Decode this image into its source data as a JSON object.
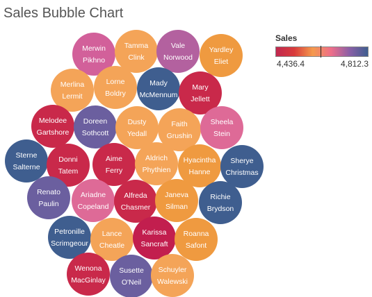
{
  "title": "Sales Bubble Chart",
  "legend": {
    "title": "Sales",
    "min_label": "4,436.4",
    "max_label": "4,812.3",
    "min": 4436.4,
    "max": 4812.3,
    "marker_value": 4620,
    "gradient": [
      "#c0284f",
      "#d93c3c",
      "#f49a4d",
      "#ee6e8a",
      "#8a5fa6",
      "#3f5e8f"
    ]
  },
  "chart_data": {
    "type": "bubble",
    "title": "Sales Bubble Chart",
    "color_measure": "Sales",
    "color_range": [
      4436.4,
      4812.3
    ],
    "points": [
      {
        "first": "Merwin",
        "last": "Pikhno",
        "color": "#d2609a",
        "value": 4660
      },
      {
        "first": "Tamma",
        "last": "Clink",
        "color": "#f4a458",
        "value": 4590
      },
      {
        "first": "Vale",
        "last": "Norwood",
        "color": "#b3619f",
        "value": 4690
      },
      {
        "first": "Yardley",
        "last": "Eliet",
        "color": "#ef9a40",
        "value": 4570
      },
      {
        "first": "Merlina",
        "last": "Lermit",
        "color": "#f4a458",
        "value": 4590
      },
      {
        "first": "Lorne",
        "last": "Boldry",
        "color": "#f4a458",
        "value": 4590
      },
      {
        "first": "Mady",
        "last": "McMennum",
        "color": "#3f5e8f",
        "value": 4800
      },
      {
        "first": "Mary",
        "last": "Jellett",
        "color": "#c9294a",
        "value": 4450
      },
      {
        "first": "Melodee",
        "last": "Gartshore",
        "color": "#c9294a",
        "value": 4460
      },
      {
        "first": "Doreen",
        "last": "Sothcott",
        "color": "#6b5f9f",
        "value": 4740
      },
      {
        "first": "Dusty",
        "last": "Yedall",
        "color": "#f4a458",
        "value": 4590
      },
      {
        "first": "Faith",
        "last": "Grushin",
        "color": "#f4a458",
        "value": 4590
      },
      {
        "first": "Sheela",
        "last": "Stein",
        "color": "#de6a97",
        "value": 4650
      },
      {
        "first": "Sterne",
        "last": "Salterne",
        "color": "#3f5e8f",
        "value": 4810
      },
      {
        "first": "Donni",
        "last": "Tatem",
        "color": "#c9294a",
        "value": 4450
      },
      {
        "first": "Aime",
        "last": "Ferry",
        "color": "#c9294a",
        "value": 4455
      },
      {
        "first": "Aldrich",
        "last": "Phythien",
        "color": "#f4a458",
        "value": 4590
      },
      {
        "first": "Hyacintha",
        "last": "Hanne",
        "color": "#ef9a40",
        "value": 4570
      },
      {
        "first": "Sherye",
        "last": "Christmas",
        "color": "#3f5e8f",
        "value": 4805
      },
      {
        "first": "Renato",
        "last": "Paulin",
        "color": "#6b5f9f",
        "value": 4740
      },
      {
        "first": "Ariadne",
        "last": "Copeland",
        "color": "#de6a97",
        "value": 4650
      },
      {
        "first": "Alfreda",
        "last": "Chasmer",
        "color": "#c9294a",
        "value": 4455
      },
      {
        "first": "Janeva",
        "last": "Silman",
        "color": "#ef9a40",
        "value": 4570
      },
      {
        "first": "Richie",
        "last": "Brydson",
        "color": "#3f5e8f",
        "value": 4800
      },
      {
        "first": "Petronille",
        "last": "Scrimgeour",
        "color": "#3f5e8f",
        "value": 4795
      },
      {
        "first": "Lance",
        "last": "Cheatle",
        "color": "#f4a458",
        "value": 4590
      },
      {
        "first": "Karissa",
        "last": "Sancraft",
        "color": "#c21e4e",
        "value": 4440
      },
      {
        "first": "Roanna",
        "last": "Safont",
        "color": "#ef9a40",
        "value": 4570
      },
      {
        "first": "Wenona",
        "last": "MacGinlay",
        "color": "#c9294a",
        "value": 4450
      },
      {
        "first": "Susette",
        "last": "O'Neil",
        "color": "#6b5f9f",
        "value": 4740
      },
      {
        "first": "Schuyler",
        "last": "Walewski",
        "color": "#f4a458",
        "value": 4590
      }
    ]
  }
}
